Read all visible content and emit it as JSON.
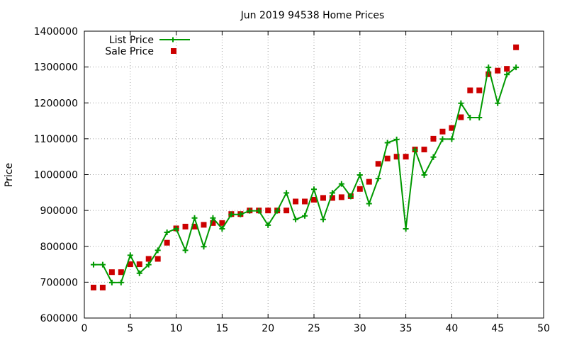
{
  "chart_data": {
    "type": "line",
    "title": "Jun 2019 94538 Home Prices",
    "xlabel": "",
    "ylabel": "Price",
    "xlim": [
      0,
      50
    ],
    "ylim": [
      600000,
      1400000
    ],
    "x_ticks": [
      0,
      5,
      10,
      15,
      20,
      25,
      30,
      35,
      40,
      45,
      50
    ],
    "y_ticks": [
      600000,
      700000,
      800000,
      900000,
      1000000,
      1100000,
      1200000,
      1300000,
      1400000
    ],
    "grid": true,
    "legend_position": "top-left",
    "series": [
      {
        "name": "List Price",
        "style": "line-with-plus-markers",
        "color": "#009900",
        "x": [
          1,
          2,
          3,
          4,
          5,
          6,
          7,
          8,
          9,
          10,
          11,
          12,
          13,
          14,
          15,
          16,
          17,
          18,
          19,
          20,
          21,
          22,
          23,
          24,
          25,
          26,
          27,
          28,
          29,
          30,
          31,
          32,
          33,
          34,
          35,
          36,
          37,
          38,
          39,
          40,
          41,
          42,
          43,
          44,
          45,
          46,
          47
        ],
        "values": [
          749000,
          749000,
          699000,
          699000,
          775000,
          725000,
          749000,
          789000,
          839000,
          849000,
          789000,
          879000,
          799000,
          879000,
          849000,
          889000,
          889000,
          899000,
          899000,
          859000,
          899000,
          949000,
          875000,
          885000,
          959000,
          875000,
          949000,
          974000,
          939000,
          999000,
          919000,
          989000,
          1089000,
          1098000,
          849000,
          1069000,
          999000,
          1049000,
          1099000,
          1099000,
          1199000,
          1159000,
          1159000,
          1299000,
          1199000,
          1279000,
          1299000
        ]
      },
      {
        "name": "Sale Price",
        "style": "square-markers",
        "color": "#cc0000",
        "x": [
          1,
          2,
          3,
          4,
          5,
          6,
          7,
          8,
          9,
          10,
          11,
          12,
          13,
          14,
          15,
          16,
          17,
          18,
          19,
          20,
          21,
          22,
          23,
          24,
          25,
          26,
          27,
          28,
          29,
          30,
          31,
          32,
          33,
          34,
          35,
          36,
          37,
          38,
          39,
          40,
          41,
          42,
          43,
          44,
          45,
          46,
          47
        ],
        "values": [
          685000,
          685000,
          728000,
          728000,
          750000,
          750000,
          765000,
          765000,
          810000,
          850000,
          855000,
          855000,
          860000,
          865000,
          865000,
          890000,
          890000,
          900000,
          900000,
          900000,
          900000,
          900000,
          925000,
          925000,
          930000,
          935000,
          935000,
          937000,
          940000,
          960000,
          980000,
          1030000,
          1045000,
          1050000,
          1050000,
          1070000,
          1070000,
          1100000,
          1120000,
          1130000,
          1160000,
          1235000,
          1235000,
          1280000,
          1290000,
          1295000,
          1355000
        ]
      }
    ]
  }
}
